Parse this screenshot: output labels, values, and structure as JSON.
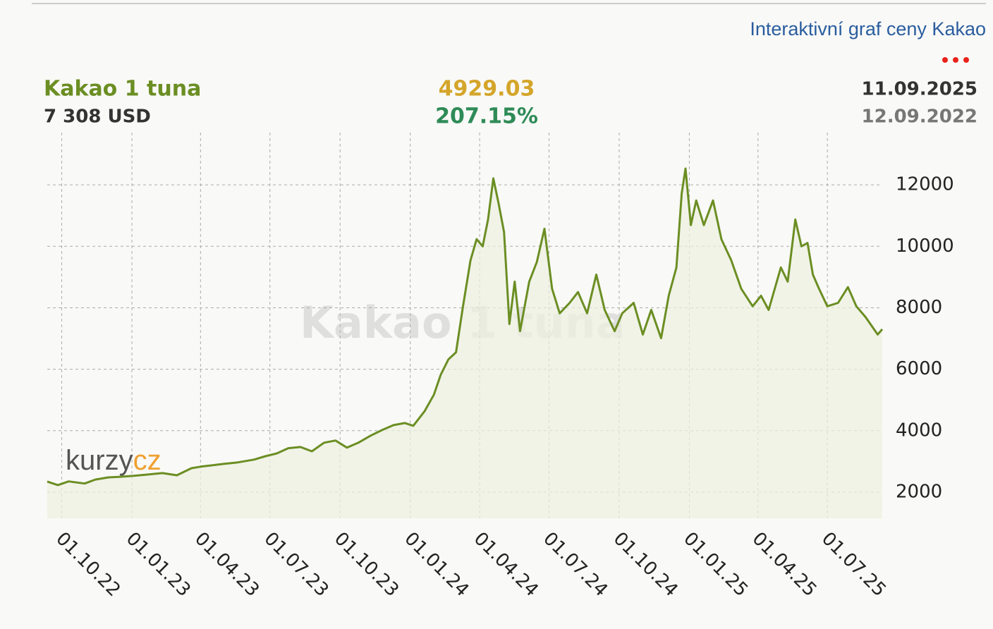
{
  "header": {
    "link": "Interaktivní graf ceny Kakao",
    "title": "Kakao 1 tuna",
    "price": "7 308 USD",
    "change": "4929.03",
    "change_pct": "207.15%",
    "date_to": "11.09.2025",
    "date_from": "12.09.2022"
  },
  "logo": {
    "text": "kurzy",
    "suffix": "cz"
  },
  "chart_data": {
    "type": "line",
    "watermark": "Kakao 1 tuna",
    "color": "#6b8e23",
    "grid": true,
    "xlim": [
      "2022-09-12",
      "2025-09-11"
    ],
    "ylim": [
      1150,
      13700
    ],
    "yticks": [
      2000,
      4000,
      6000,
      8000,
      10000,
      12000
    ],
    "xticks": [
      {
        "value": "2022-10-01",
        "label": "01.10.22"
      },
      {
        "value": "2023-01-01",
        "label": "01.01.23"
      },
      {
        "value": "2023-04-01",
        "label": "01.04.23"
      },
      {
        "value": "2023-07-01",
        "label": "01.07.23"
      },
      {
        "value": "2023-10-01",
        "label": "01.10.23"
      },
      {
        "value": "2024-01-01",
        "label": "01.01.24"
      },
      {
        "value": "2024-04-01",
        "label": "01.04.24"
      },
      {
        "value": "2024-07-01",
        "label": "01.07.24"
      },
      {
        "value": "2024-10-01",
        "label": "01.10.24"
      },
      {
        "value": "2025-01-01",
        "label": "01.01.25"
      },
      {
        "value": "2025-04-01",
        "label": "01.04.25"
      },
      {
        "value": "2025-07-01",
        "label": "01.07.25"
      }
    ],
    "x": [
      "2022-09-12",
      "2022-09-26",
      "2022-10-10",
      "2022-10-31",
      "2022-11-14",
      "2022-12-01",
      "2022-12-15",
      "2023-01-02",
      "2023-01-20",
      "2023-02-10",
      "2023-03-01",
      "2023-03-20",
      "2023-04-01",
      "2023-04-15",
      "2023-05-01",
      "2023-05-20",
      "2023-06-10",
      "2023-06-25",
      "2023-07-10",
      "2023-07-25",
      "2023-08-10",
      "2023-08-25",
      "2023-09-10",
      "2023-09-25",
      "2023-10-10",
      "2023-10-25",
      "2023-11-10",
      "2023-11-25",
      "2023-12-10",
      "2023-12-25",
      "2024-01-05",
      "2024-01-20",
      "2024-02-01",
      "2024-02-10",
      "2024-02-20",
      "2024-03-01",
      "2024-03-10",
      "2024-03-20",
      "2024-03-28",
      "2024-04-05",
      "2024-04-12",
      "2024-04-19",
      "2024-04-26",
      "2024-05-03",
      "2024-05-10",
      "2024-05-17",
      "2024-05-24",
      "2024-06-05",
      "2024-06-15",
      "2024-06-25",
      "2024-07-05",
      "2024-07-15",
      "2024-07-28",
      "2024-08-08",
      "2024-08-20",
      "2024-09-01",
      "2024-09-12",
      "2024-09-25",
      "2024-10-05",
      "2024-10-20",
      "2024-11-01",
      "2024-11-12",
      "2024-11-25",
      "2024-12-05",
      "2024-12-15",
      "2024-12-22",
      "2024-12-27",
      "2025-01-03",
      "2025-01-10",
      "2025-01-20",
      "2025-02-01",
      "2025-02-12",
      "2025-02-25",
      "2025-03-10",
      "2025-03-25",
      "2025-04-05",
      "2025-04-15",
      "2025-05-01",
      "2025-05-10",
      "2025-05-20",
      "2025-05-28",
      "2025-06-05",
      "2025-06-12",
      "2025-06-20",
      "2025-07-01",
      "2025-07-15",
      "2025-07-28",
      "2025-08-08",
      "2025-08-20",
      "2025-09-05",
      "2025-09-11"
    ],
    "values": [
      2345,
      2230,
      2350,
      2280,
      2410,
      2480,
      2500,
      2530,
      2570,
      2620,
      2550,
      2780,
      2830,
      2870,
      2920,
      2970,
      3060,
      3170,
      3260,
      3430,
      3470,
      3330,
      3610,
      3680,
      3450,
      3610,
      3840,
      4020,
      4180,
      4250,
      4160,
      4640,
      5170,
      5820,
      6320,
      6550,
      8020,
      9540,
      10230,
      10000,
      10870,
      12210,
      11380,
      10460,
      7470,
      8850,
      7240,
      8850,
      9490,
      10570,
      8620,
      7820,
      8160,
      8510,
      7820,
      9080,
      7930,
      7240,
      7820,
      8160,
      7130,
      7930,
      7010,
      8390,
      9310,
      11720,
      12530,
      10690,
      11490,
      10690,
      11490,
      10230,
      9540,
      8620,
      8050,
      8390,
      7930,
      9310,
      8850,
      10870,
      10000,
      10110,
      9080,
      8620,
      8050,
      8160,
      8670,
      8050,
      7700,
      7130,
      7300
    ]
  }
}
